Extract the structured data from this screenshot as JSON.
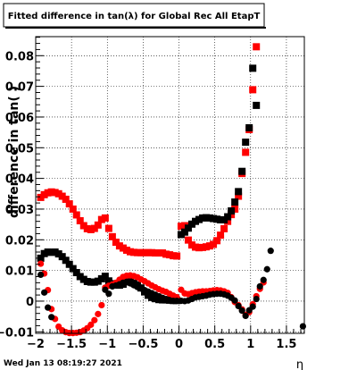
{
  "chart_data": {
    "type": "scatter",
    "title": "Fitted difference in tan(λ) for Global Rec All EtapT",
    "xlabel": "η",
    "ylabel": "difference in tan( )",
    "xlim": [
      -2.0,
      1.75
    ],
    "ylim": [
      -0.0105,
      0.0862
    ],
    "x_ticks": [
      -2,
      -1.5,
      -1,
      -0.5,
      0,
      0.5,
      1,
      1.5
    ],
    "x_tick_labels": [
      "−2",
      "−1.5",
      "−1",
      "−0.5",
      "0",
      "0.5",
      "1",
      "1.5"
    ],
    "y_ticks": [
      -0.01,
      0,
      0.01,
      0.02,
      0.03,
      0.04,
      0.05,
      0.06,
      0.07,
      0.08
    ],
    "y_tick_labels": [
      "−0.01",
      "0",
      "0.01",
      "0.02",
      "0.03",
      "0.04",
      "0.05",
      "0.06",
      "0.07",
      "0.08"
    ],
    "grid": true,
    "series": [
      {
        "marker": "square",
        "color": "#ff0000",
        "points": [
          [
            -1.93,
            0.0338
          ],
          [
            -1.88,
            0.0347
          ],
          [
            -1.83,
            0.0353
          ],
          [
            -1.78,
            0.0356
          ],
          [
            -1.73,
            0.0354
          ],
          [
            -1.68,
            0.035
          ],
          [
            -1.63,
            0.0342
          ],
          [
            -1.58,
            0.0332
          ],
          [
            -1.53,
            0.0317
          ],
          [
            -1.48,
            0.03
          ],
          [
            -1.43,
            0.0281
          ],
          [
            -1.38,
            0.0262
          ],
          [
            -1.33,
            0.0246
          ],
          [
            -1.28,
            0.0236
          ],
          [
            -1.23,
            0.0233
          ],
          [
            -1.18,
            0.0237
          ],
          [
            -1.13,
            0.0248
          ],
          [
            -1.08,
            0.0266
          ],
          [
            -1.03,
            0.0271
          ],
          [
            -0.98,
            0.0237
          ],
          [
            -0.93,
            0.021
          ],
          [
            -0.88,
            0.0192
          ],
          [
            -0.83,
            0.018
          ],
          [
            -0.78,
            0.0173
          ],
          [
            -0.73,
            0.0166
          ],
          [
            -0.68,
            0.0161
          ],
          [
            -0.63,
            0.0159
          ],
          [
            -0.58,
            0.0158
          ],
          [
            -0.53,
            0.0158
          ],
          [
            -0.48,
            0.0158
          ],
          [
            -0.43,
            0.0158
          ],
          [
            -0.38,
            0.0158
          ],
          [
            -0.33,
            0.0157
          ],
          [
            -0.28,
            0.0157
          ],
          [
            -0.23,
            0.0157
          ],
          [
            -0.18,
            0.0153
          ],
          [
            -0.13,
            0.0151
          ],
          [
            -0.08,
            0.0148
          ],
          [
            -0.03,
            0.0147
          ],
          [
            0.03,
            0.0244
          ],
          [
            0.08,
            0.0246
          ],
          [
            0.13,
            0.0199
          ],
          [
            0.18,
            0.0183
          ],
          [
            0.23,
            0.0176
          ],
          [
            0.28,
            0.0174
          ],
          [
            0.33,
            0.0175
          ],
          [
            0.38,
            0.0177
          ],
          [
            0.43,
            0.018
          ],
          [
            0.48,
            0.0185
          ],
          [
            0.53,
            0.0197
          ],
          [
            0.58,
            0.0215
          ],
          [
            0.63,
            0.0236
          ],
          [
            0.68,
            0.026
          ],
          [
            0.73,
            0.0282
          ],
          [
            0.78,
            0.03
          ],
          [
            0.83,
            0.0342
          ],
          [
            0.88,
            0.0416
          ],
          [
            0.93,
            0.0485
          ],
          [
            0.98,
            0.0559
          ],
          [
            1.03,
            0.0689
          ],
          [
            1.08,
            0.0829
          ]
        ]
      },
      {
        "marker": "square",
        "color": "#000000",
        "points": [
          [
            -1.93,
            0.014
          ],
          [
            -1.88,
            0.0155
          ],
          [
            -1.83,
            0.016
          ],
          [
            -1.78,
            0.0159
          ],
          [
            -1.73,
            0.016
          ],
          [
            -1.68,
            0.0154
          ],
          [
            -1.63,
            0.0145
          ],
          [
            -1.58,
            0.0133
          ],
          [
            -1.53,
            0.012
          ],
          [
            -1.48,
            0.0106
          ],
          [
            -1.43,
            0.0093
          ],
          [
            -1.38,
            0.008
          ],
          [
            -1.33,
            0.0071
          ],
          [
            -1.28,
            0.0064
          ],
          [
            -1.23,
            0.0062
          ],
          [
            -1.18,
            0.0062
          ],
          [
            -1.13,
            0.0065
          ],
          [
            -1.08,
            0.0073
          ],
          [
            -1.03,
            0.0081
          ],
          [
            -0.98,
            0.0066
          ],
          [
            -0.93,
            0.0057
          ],
          [
            -0.88,
            0.0053
          ],
          [
            -0.83,
            0.0052
          ],
          [
            -0.78,
            0.0055
          ],
          [
            -0.73,
            0.0063
          ],
          [
            -0.68,
            0.0063
          ],
          [
            -0.63,
            0.0059
          ],
          [
            -0.58,
            0.0053
          ],
          [
            -0.53,
            0.0043
          ],
          [
            -0.48,
            0.003
          ],
          [
            -0.43,
            0.0019
          ],
          [
            -0.38,
            0.0012
          ],
          [
            -0.33,
            0.0008
          ],
          [
            -0.28,
            0.0005
          ],
          [
            -0.23,
            0.0004
          ],
          [
            -0.18,
            0.0004
          ],
          [
            -0.13,
            0.0003
          ],
          [
            -0.08,
            0.0002
          ],
          [
            -0.03,
            0.0002
          ],
          [
            0.03,
            0.0217
          ],
          [
            0.08,
            0.0225
          ],
          [
            0.13,
            0.0238
          ],
          [
            0.18,
            0.0251
          ],
          [
            0.23,
            0.026
          ],
          [
            0.28,
            0.0266
          ],
          [
            0.33,
            0.0271
          ],
          [
            0.38,
            0.0272
          ],
          [
            0.43,
            0.0271
          ],
          [
            0.48,
            0.0269
          ],
          [
            0.53,
            0.0267
          ],
          [
            0.58,
            0.0265
          ],
          [
            0.63,
            0.0265
          ],
          [
            0.68,
            0.0275
          ],
          [
            0.73,
            0.0294
          ],
          [
            0.78,
            0.0323
          ],
          [
            0.83,
            0.0357
          ],
          [
            0.88,
            0.0423
          ],
          [
            0.93,
            0.0518
          ],
          [
            0.98,
            0.0565
          ],
          [
            1.03,
            0.0759
          ],
          [
            1.08,
            0.0638
          ]
        ]
      },
      {
        "marker": "circle",
        "color": "#ff0000",
        "points": [
          [
            -1.93,
            0.0122
          ],
          [
            -1.88,
            0.009
          ],
          [
            -1.83,
            0.0036
          ],
          [
            -1.78,
            -0.0026
          ],
          [
            -1.73,
            -0.0058
          ],
          [
            -1.68,
            -0.0083
          ],
          [
            -1.63,
            -0.0095
          ],
          [
            -1.58,
            -0.0101
          ],
          [
            -1.53,
            -0.0104
          ],
          [
            -1.48,
            -0.0104
          ],
          [
            -1.43,
            -0.0103
          ],
          [
            -1.38,
            -0.0101
          ],
          [
            -1.33,
            -0.0096
          ],
          [
            -1.28,
            -0.0088
          ],
          [
            -1.23,
            -0.0077
          ],
          [
            -1.18,
            -0.0062
          ],
          [
            -1.13,
            -0.0042
          ],
          [
            -1.08,
            -0.0013
          ],
          [
            -1.03,
            0.0044
          ],
          [
            -0.98,
            0.005
          ],
          [
            -0.93,
            0.0054
          ],
          [
            -0.88,
            0.006
          ],
          [
            -0.83,
            0.007
          ],
          [
            -0.78,
            0.0079
          ],
          [
            -0.73,
            0.0083
          ],
          [
            -0.68,
            0.0084
          ],
          [
            -0.63,
            0.0082
          ],
          [
            -0.58,
            0.0078
          ],
          [
            -0.53,
            0.0071
          ],
          [
            -0.48,
            0.0065
          ],
          [
            -0.43,
            0.0058
          ],
          [
            -0.38,
            0.0051
          ],
          [
            -0.33,
            0.0045
          ],
          [
            -0.28,
            0.0039
          ],
          [
            -0.23,
            0.0034
          ],
          [
            -0.18,
            0.003
          ],
          [
            -0.13,
            0.0024
          ],
          [
            -0.08,
            0.0018
          ],
          [
            -0.03,
            0.0013
          ],
          [
            0.03,
            0.0037
          ],
          [
            0.08,
            0.0025
          ],
          [
            0.13,
            0.0023
          ],
          [
            0.18,
            0.0026
          ],
          [
            0.23,
            0.0029
          ],
          [
            0.28,
            0.0031
          ],
          [
            0.33,
            0.0032
          ],
          [
            0.38,
            0.0032
          ],
          [
            0.43,
            0.0033
          ],
          [
            0.48,
            0.0035
          ],
          [
            0.53,
            0.0036
          ],
          [
            0.58,
            0.0035
          ],
          [
            0.63,
            0.0032
          ],
          [
            0.68,
            0.0027
          ],
          [
            0.73,
            0.0013
          ],
          [
            0.78,
            -0.0003
          ],
          [
            0.83,
            -0.0013
          ],
          [
            0.88,
            -0.0027
          ],
          [
            0.93,
            -0.0045
          ],
          [
            0.98,
            -0.0036
          ],
          [
            1.03,
            -0.001
          ],
          [
            1.08,
            0.0016
          ],
          [
            1.13,
            0.004
          ],
          [
            1.18,
            0.0061
          ]
        ]
      },
      {
        "marker": "circle",
        "color": "#000000",
        "points": [
          [
            -1.93,
            0.0086
          ],
          [
            -1.88,
            0.0028
          ],
          [
            -1.83,
            -0.0021
          ],
          [
            -1.78,
            -0.0052
          ],
          [
            -1.03,
            0.0037
          ],
          [
            -0.98,
            0.0024
          ],
          [
            -0.93,
            0.0048
          ],
          [
            -0.88,
            0.0051
          ],
          [
            -0.83,
            0.0055
          ],
          [
            -0.78,
            0.006
          ],
          [
            -0.73,
            0.0063
          ],
          [
            -0.68,
            0.0058
          ],
          [
            -0.63,
            0.0052
          ],
          [
            -0.58,
            0.0046
          ],
          [
            -0.53,
            0.0041
          ],
          [
            -0.48,
            0.0036
          ],
          [
            -0.43,
            0.0031
          ],
          [
            -0.38,
            0.0026
          ],
          [
            -0.33,
            0.0021
          ],
          [
            -0.28,
            0.0016
          ],
          [
            -0.23,
            0.0011
          ],
          [
            -0.18,
            0.0007
          ],
          [
            -0.13,
            0.0003
          ],
          [
            -0.08,
            0.0001
          ],
          [
            -0.03,
            0.0001
          ],
          [
            0.03,
            0.0001
          ],
          [
            0.08,
            0.0
          ],
          [
            0.13,
            0.0002
          ],
          [
            0.18,
            0.0007
          ],
          [
            0.23,
            0.0012
          ],
          [
            0.28,
            0.0014
          ],
          [
            0.33,
            0.0016
          ],
          [
            0.38,
            0.0018
          ],
          [
            0.43,
            0.0021
          ],
          [
            0.48,
            0.0023
          ],
          [
            0.53,
            0.0024
          ],
          [
            0.58,
            0.0024
          ],
          [
            0.63,
            0.0022
          ],
          [
            0.68,
            0.0018
          ],
          [
            0.73,
            0.0011
          ],
          [
            0.78,
            0.0002
          ],
          [
            0.83,
            -0.0016
          ],
          [
            0.88,
            -0.0031
          ],
          [
            0.93,
            -0.0048
          ],
          [
            0.98,
            -0.003
          ],
          [
            1.03,
            -0.0018
          ],
          [
            1.08,
            0.0007
          ],
          [
            1.13,
            0.0048
          ],
          [
            1.18,
            0.0069
          ],
          [
            1.23,
            0.0104
          ],
          [
            1.28,
            0.0164
          ],
          [
            1.73,
            -0.0082
          ]
        ]
      }
    ]
  },
  "footer": {
    "timestamp": "Wed Jan 13 08:19:27 2021"
  }
}
